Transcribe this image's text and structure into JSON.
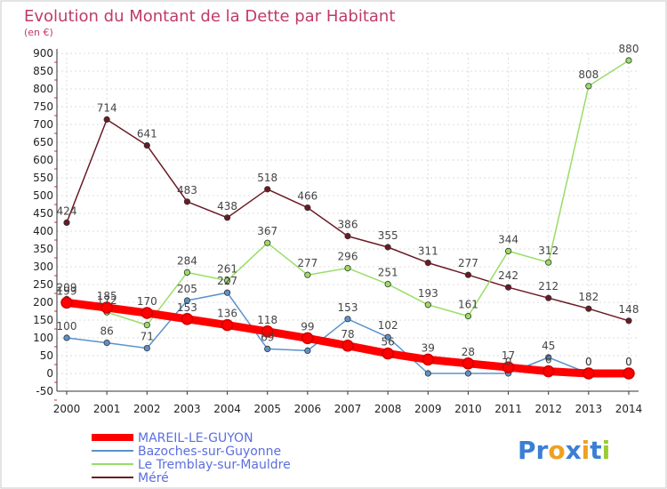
{
  "chart_data": {
    "type": "line",
    "title": "Evolution du Montant de la Dette par Habitant",
    "subtitle": "(en €)",
    "xlabel": "",
    "ylabel": "",
    "x": [
      "2000",
      "2001",
      "2002",
      "2003",
      "2004",
      "2005",
      "2006",
      "2007",
      "2008",
      "2009",
      "2010",
      "2011",
      "2012",
      "2013",
      "2014"
    ],
    "ylim": [
      -50,
      900
    ],
    "yticks": [
      "-50",
      "0",
      "50",
      "100",
      "150",
      "200",
      "250",
      "300",
      "350",
      "400",
      "450",
      "500",
      "550",
      "600",
      "650",
      "700",
      "750",
      "800",
      "850",
      "900"
    ],
    "grid": true,
    "legend_position": "bottom-left",
    "series": [
      {
        "name": "MAREIL-LE-GUYON",
        "color": "#ff0000",
        "values": [
          199,
          185,
          170,
          153,
          136,
          118,
          99,
          78,
          56,
          39,
          28,
          17,
          6,
          0,
          0
        ],
        "labels": [
          "199",
          "185",
          "170",
          "153",
          "136",
          "118",
          "99",
          "78",
          "56",
          "39",
          "28",
          "17",
          "6",
          "0",
          "0"
        ]
      },
      {
        "name": "Bazoches-sur-Guyonne",
        "color": "#5b92cc",
        "values": [
          100,
          86,
          71,
          205,
          227,
          69,
          64,
          153,
          102,
          0,
          0,
          0,
          45,
          0,
          0
        ],
        "labels": [
          "100",
          "86",
          "71",
          "205",
          "227",
          "69",
          "",
          "153",
          "102",
          "",
          "",
          "0",
          "45",
          "0",
          "0"
        ]
      },
      {
        "name": "Le Tremblay-sur-Mauldre",
        "color": "#99dd66",
        "values": [
          209,
          172,
          136,
          284,
          261,
          367,
          277,
          296,
          251,
          193,
          161,
          344,
          312,
          808,
          880
        ],
        "labels": [
          "209",
          "172",
          "",
          "284",
          "261",
          "367",
          "277",
          "296",
          "251",
          "193",
          "161",
          "344",
          "312",
          "808",
          "880"
        ]
      },
      {
        "name": "Méré",
        "color": "#6b1a24",
        "values": [
          424,
          714,
          641,
          483,
          438,
          518,
          466,
          386,
          355,
          311,
          277,
          242,
          212,
          182,
          148
        ],
        "labels": [
          "424",
          "714",
          "641",
          "483",
          "438",
          "518",
          "466",
          "386",
          "355",
          "311",
          "277",
          "242",
          "212",
          "182",
          "148"
        ]
      }
    ]
  },
  "logo": {
    "text": "Proxiti"
  }
}
